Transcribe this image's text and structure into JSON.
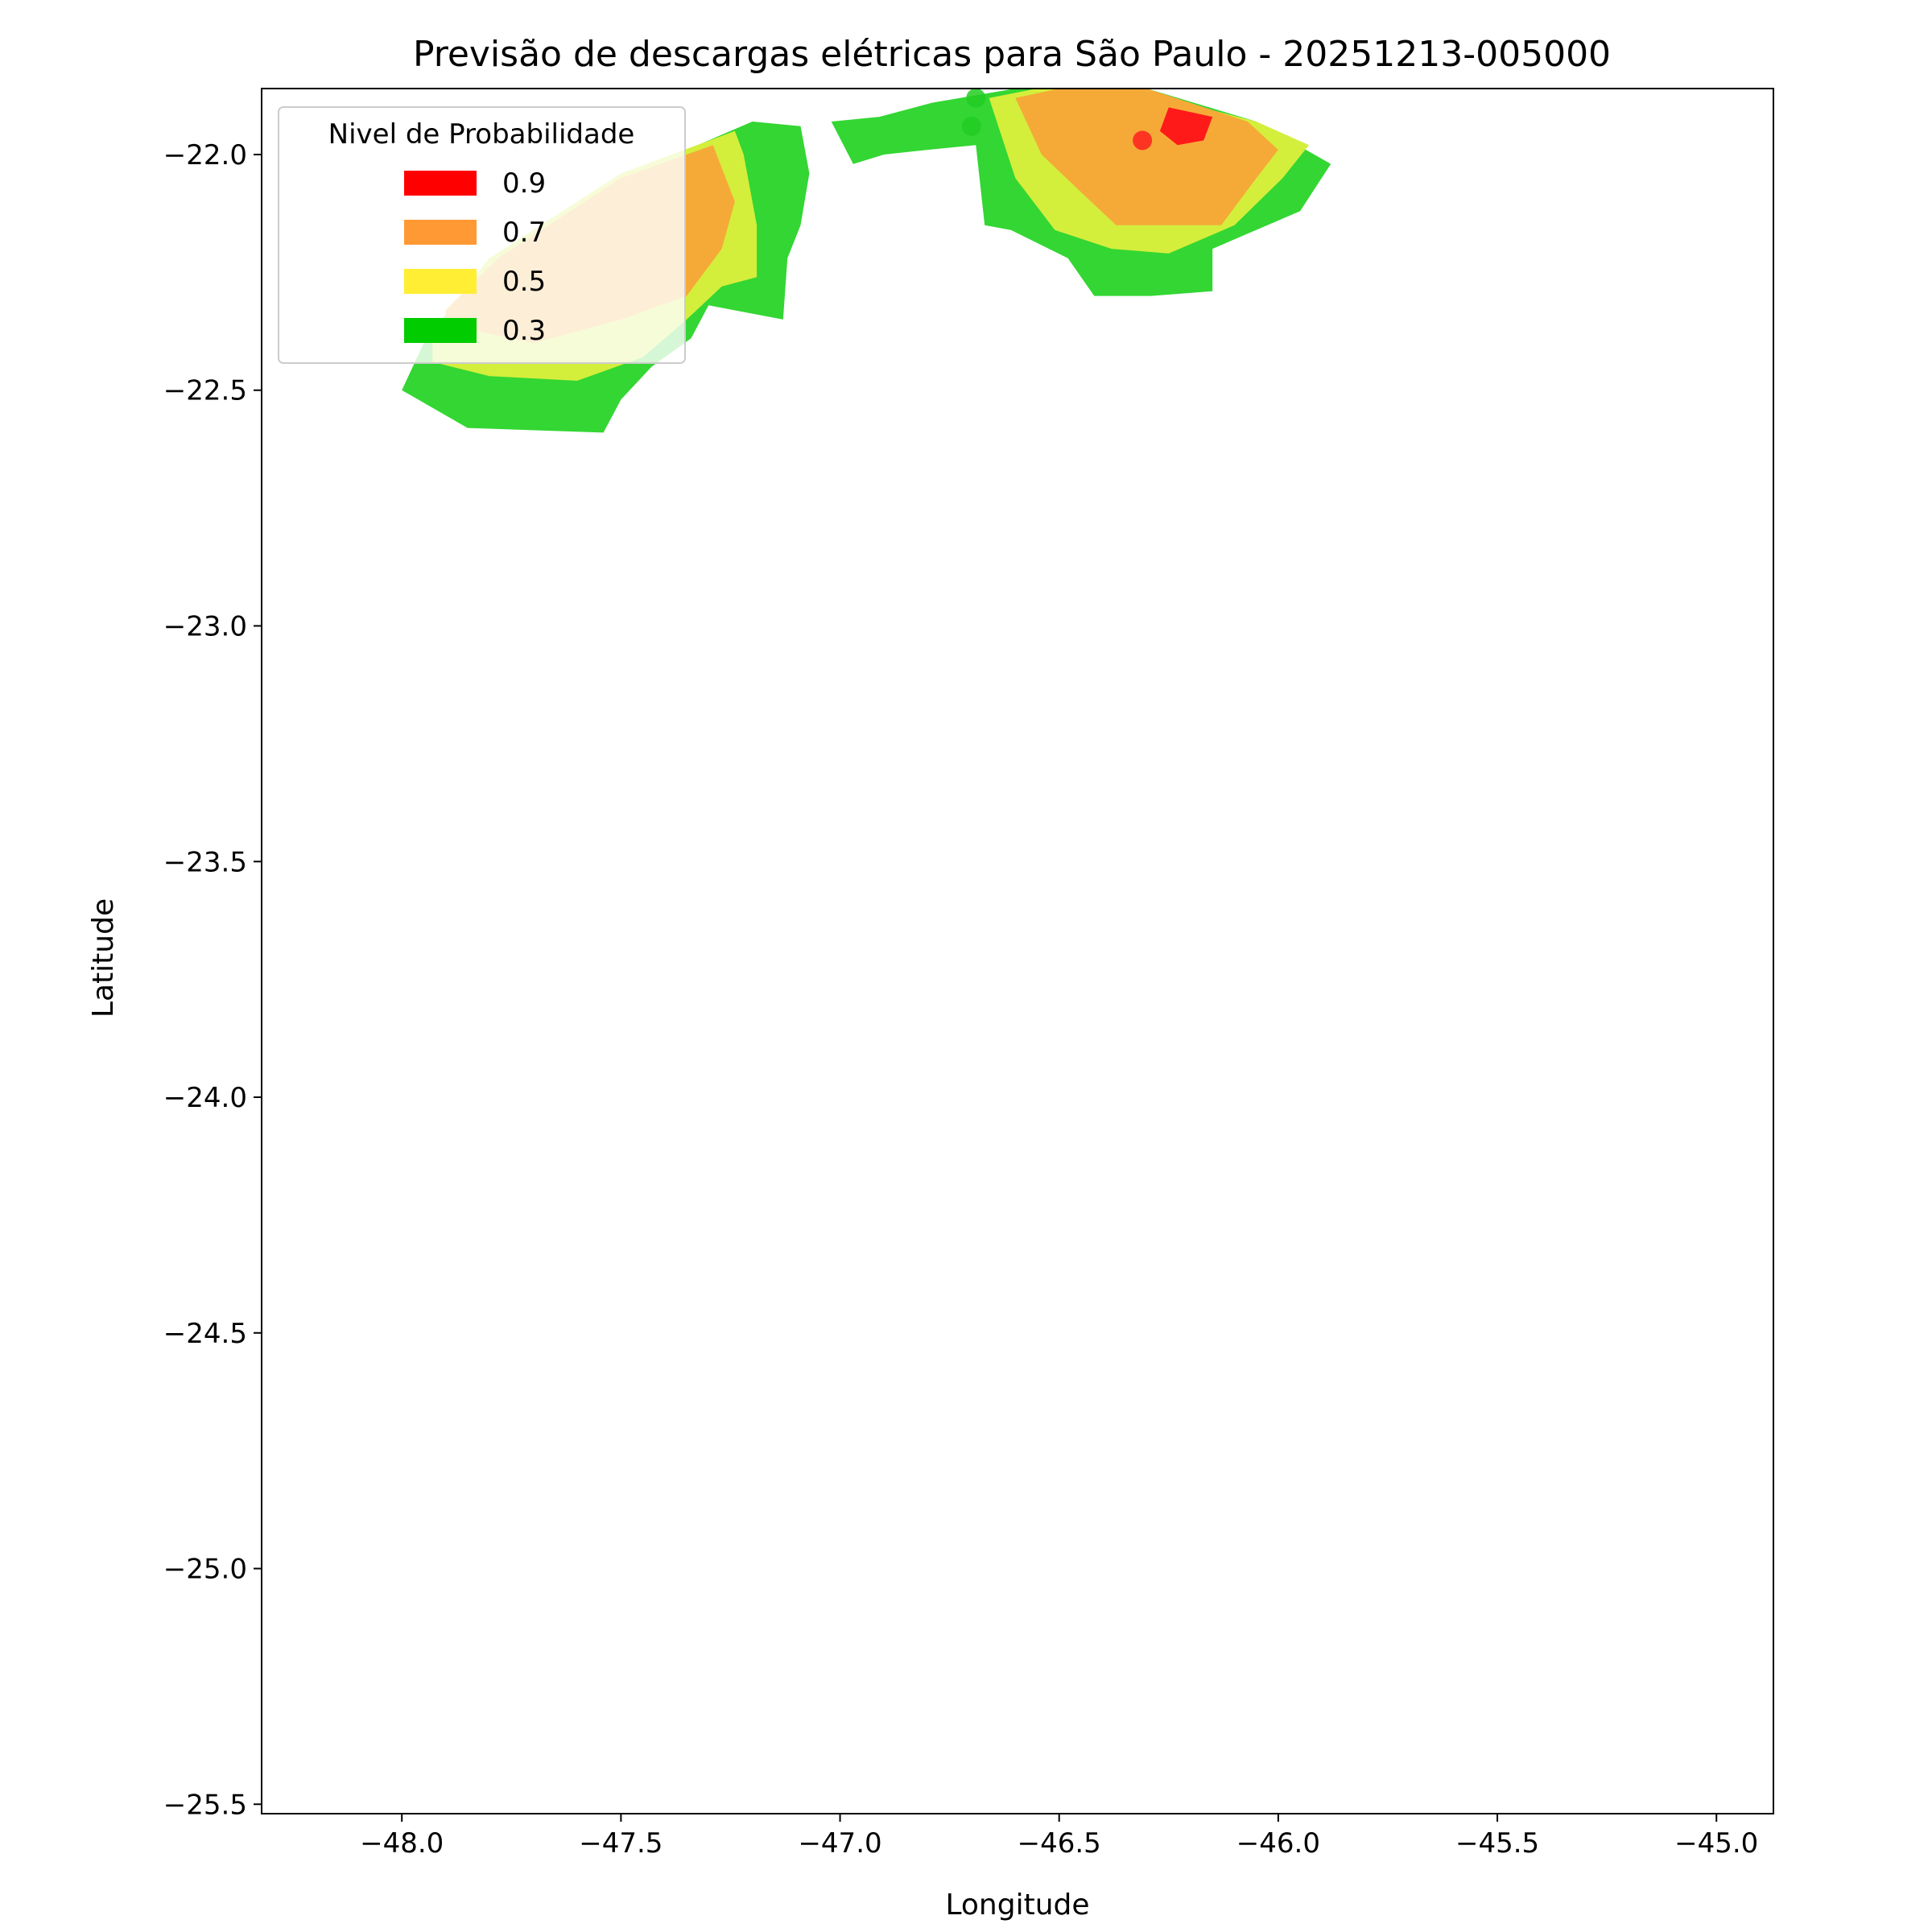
{
  "chart_data": {
    "type": "contour-map",
    "title": "Previsão de descargas elétricas para São Paulo - 20251213-005000",
    "xlabel": "Longitude",
    "ylabel": "Latitude",
    "xlim": [
      -48.32,
      -44.87
    ],
    "ylim": [
      -25.52,
      -21.86
    ],
    "xticks": [
      -48.0,
      -47.5,
      -47.0,
      -46.5,
      -46.0,
      -45.5,
      -45.0
    ],
    "xtick_labels": [
      "−48.0",
      "−47.5",
      "−47.0",
      "−46.5",
      "−46.0",
      "−45.5",
      "−45.0"
    ],
    "yticks": [
      -22.0,
      -22.5,
      -23.0,
      -23.5,
      -24.0,
      -24.5,
      -25.0,
      -25.5
    ],
    "ytick_labels": [
      "−22.0",
      "−22.5",
      "−23.0",
      "−23.5",
      "−24.0",
      "−24.5",
      "−25.0",
      "−25.5"
    ],
    "grid": false,
    "legend": {
      "title": "Nivel de Probabilidade",
      "placement": "upper-left",
      "entries": [
        {
          "label": "0.9",
          "color": "#ff0000"
        },
        {
          "label": "0.7",
          "color": "#ff9933"
        },
        {
          "label": "0.5",
          "color": "#ffee33"
        },
        {
          "label": "0.3",
          "color": "#00cc00"
        }
      ]
    },
    "regions": [
      {
        "level": 0.3,
        "color": "#33d633",
        "points": [
          [
            -48.0,
            -22.5
          ],
          [
            -47.85,
            -22.58
          ],
          [
            -47.54,
            -22.59
          ],
          [
            -47.5,
            -22.52
          ],
          [
            -47.43,
            -22.45
          ],
          [
            -47.34,
            -22.39
          ],
          [
            -47.3,
            -22.32
          ],
          [
            -47.13,
            -22.35
          ],
          [
            -47.12,
            -22.22
          ],
          [
            -47.09,
            -22.15
          ],
          [
            -47.07,
            -22.04
          ],
          [
            -47.09,
            -21.94
          ],
          [
            -47.2,
            -21.93
          ],
          [
            -47.5,
            -22.05
          ],
          [
            -47.8,
            -22.22
          ],
          [
            -47.95,
            -22.4
          ]
        ]
      },
      {
        "level": 0.5,
        "color": "#d4ee3c",
        "points": [
          [
            -47.93,
            -22.44
          ],
          [
            -47.8,
            -22.47
          ],
          [
            -47.6,
            -22.48
          ],
          [
            -47.45,
            -22.43
          ],
          [
            -47.35,
            -22.35
          ],
          [
            -47.27,
            -22.28
          ],
          [
            -47.19,
            -22.26
          ],
          [
            -47.19,
            -22.15
          ],
          [
            -47.22,
            -22.0
          ],
          [
            -47.24,
            -21.95
          ],
          [
            -47.5,
            -22.04
          ],
          [
            -47.8,
            -22.22
          ],
          [
            -47.93,
            -22.38
          ]
        ]
      },
      {
        "level": 0.7,
        "color": "#f5aa38",
        "points": [
          [
            -47.9,
            -22.36
          ],
          [
            -47.7,
            -22.4
          ],
          [
            -47.5,
            -22.35
          ],
          [
            -47.35,
            -22.3
          ],
          [
            -47.27,
            -22.2
          ],
          [
            -47.24,
            -22.1
          ],
          [
            -47.29,
            -21.98
          ],
          [
            -47.5,
            -22.05
          ],
          [
            -47.78,
            -22.22
          ],
          [
            -47.9,
            -22.33
          ]
        ]
      },
      {
        "level": 0.3,
        "color": "#33d633",
        "points": [
          [
            -46.91,
            -21.92
          ],
          [
            -46.79,
            -21.89
          ],
          [
            -46.6,
            -21.86
          ],
          [
            -46.3,
            -21.86
          ],
          [
            -46.05,
            -21.93
          ],
          [
            -45.88,
            -22.02
          ],
          [
            -45.95,
            -22.12
          ],
          [
            -46.15,
            -22.2
          ],
          [
            -46.15,
            -22.29
          ],
          [
            -46.29,
            -22.3
          ],
          [
            -46.42,
            -22.3
          ],
          [
            -46.48,
            -22.22
          ],
          [
            -46.61,
            -22.16
          ],
          [
            -46.67,
            -22.15
          ],
          [
            -46.69,
            -21.98
          ],
          [
            -46.8,
            -21.99
          ],
          [
            -46.9,
            -22.0
          ],
          [
            -46.97,
            -22.02
          ],
          [
            -47.02,
            -21.93
          ]
        ]
      },
      {
        "level": 0.5,
        "color": "#d4ee3c",
        "points": [
          [
            -46.66,
            -21.88
          ],
          [
            -46.6,
            -22.05
          ],
          [
            -46.51,
            -22.16
          ],
          [
            -46.38,
            -22.2
          ],
          [
            -46.25,
            -22.21
          ],
          [
            -46.1,
            -22.15
          ],
          [
            -45.99,
            -22.05
          ],
          [
            -45.93,
            -21.98
          ],
          [
            -46.05,
            -21.93
          ],
          [
            -46.3,
            -21.87
          ],
          [
            -46.55,
            -21.86
          ]
        ]
      },
      {
        "level": 0.7,
        "color": "#f5aa38",
        "points": [
          [
            -46.6,
            -21.88
          ],
          [
            -46.54,
            -22.0
          ],
          [
            -46.45,
            -22.08
          ],
          [
            -46.37,
            -22.15
          ],
          [
            -46.13,
            -22.15
          ],
          [
            -46.05,
            -22.05
          ],
          [
            -46.0,
            -21.99
          ],
          [
            -46.07,
            -21.93
          ],
          [
            -46.3,
            -21.86
          ],
          [
            -46.5,
            -21.86
          ]
        ]
      },
      {
        "level": 0.9,
        "color": "#ff1a1a",
        "points": [
          [
            -46.25,
            -21.9
          ],
          [
            -46.15,
            -21.92
          ],
          [
            -46.17,
            -21.97
          ],
          [
            -46.23,
            -21.98
          ],
          [
            -46.27,
            -21.95
          ]
        ]
      }
    ],
    "points": [
      {
        "lon": -46.31,
        "lat": -21.97,
        "color": "#ff2020"
      },
      {
        "lon": -46.69,
        "lat": -21.88,
        "color": "#22cc22"
      },
      {
        "lon": -46.7,
        "lat": -21.94,
        "color": "#22cc22"
      }
    ]
  }
}
